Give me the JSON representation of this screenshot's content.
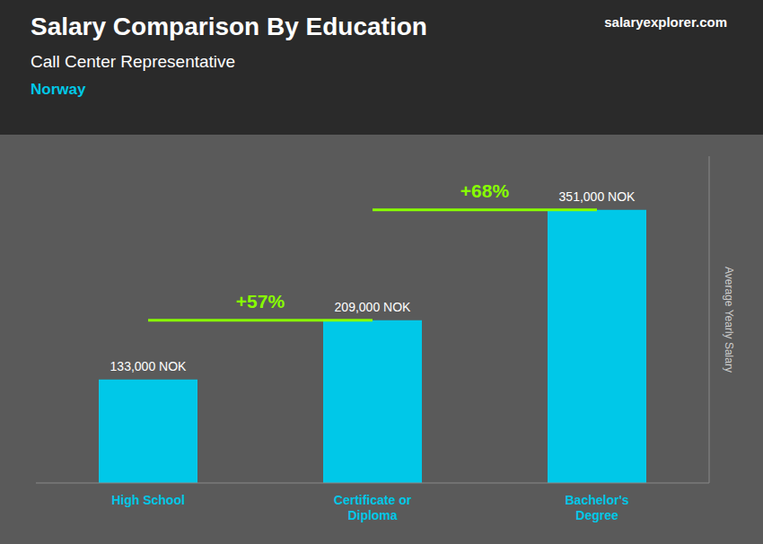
{
  "chart_data": {
    "type": "bar",
    "title": "Salary Comparison By Education",
    "subtitle": "Call Center Representative",
    "annotations": [
      "Norway",
      "salaryexplorer.com",
      "+57%",
      "+68%"
    ],
    "ylabel": "Average Yearly Salary",
    "categories": [
      "High School",
      "Certificate or\nDiploma",
      "Bachelor's\nDegree"
    ],
    "values": [
      133000,
      209000,
      351000
    ],
    "value_labels": [
      "133,000 NOK",
      "209,000 NOK",
      "351,000 NOK"
    ],
    "data_labels": true,
    "color": "#00c8e8",
    "ylim": [
      0,
      420000
    ],
    "tick_labels": "x",
    "grid": false
  }
}
